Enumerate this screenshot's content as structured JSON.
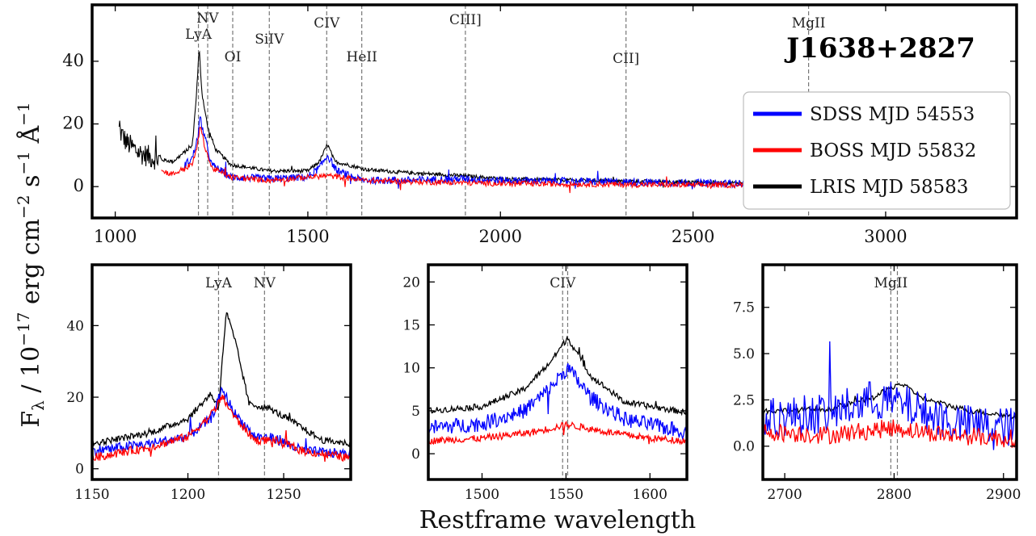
{
  "figure": {
    "object_name": "J1638+2827",
    "xlabel": "Restframe wavelength",
    "ylabel_parts": {
      "main": "F",
      "sub": "λ",
      "mid": " / 10",
      "exp1": "−17",
      "mid2": " erg cm",
      "exp2": "−2",
      "mid3": " s",
      "exp3": "−1",
      "mid4": " Å",
      "exp4": "−1"
    }
  },
  "legend": {
    "entries": [
      {
        "label": "SDSS MJD 54553",
        "color": "#0000ff"
      },
      {
        "label": "BOSS MJD 55832",
        "color": "#ff0000"
      },
      {
        "label": "LRIS MJD 58583",
        "color": "#000000"
      }
    ]
  },
  "chart_data": [
    {
      "type": "line",
      "panel": "full-spectrum",
      "xlim": [
        940,
        3340
      ],
      "ylim": [
        -10,
        58
      ],
      "xticks": [
        1000,
        1500,
        2000,
        2500,
        3000
      ],
      "yticks": [
        0,
        20,
        40
      ],
      "lines": [
        {
          "label": "LyA",
          "x": 1216
        },
        {
          "label": "NV",
          "x": 1240
        },
        {
          "label": "OI",
          "x": 1305
        },
        {
          "label": "SiIV",
          "x": 1400
        },
        {
          "label": "CIV",
          "x": 1549
        },
        {
          "label": "HeII",
          "x": 1640
        },
        {
          "label": "CIII]",
          "x": 1909
        },
        {
          "label": "CII]",
          "x": 2326
        },
        {
          "label": "MgII",
          "x": 2800
        }
      ],
      "series": [
        {
          "name": "SDSS MJD 54553",
          "x_range": [
            1180,
            2910
          ],
          "anchors": [
            [
              1180,
              7
            ],
            [
              1200,
              9
            ],
            [
              1215,
              16
            ],
            [
              1220,
              22
            ],
            [
              1230,
              17
            ],
            [
              1250,
              7
            ],
            [
              1300,
              3
            ],
            [
              1400,
              2.5
            ],
            [
              1500,
              3
            ],
            [
              1530,
              6
            ],
            [
              1551,
              10
            ],
            [
              1575,
              5
            ],
            [
              1640,
              2
            ],
            [
              1750,
              2
            ],
            [
              1900,
              2.5
            ],
            [
              2000,
              2
            ],
            [
              2300,
              1.5
            ],
            [
              2600,
              1
            ],
            [
              2910,
              1
            ]
          ]
        },
        {
          "name": "BOSS MJD 55832",
          "x_range": [
            1120,
            3260
          ],
          "anchors": [
            [
              1120,
              5
            ],
            [
              1150,
              4
            ],
            [
              1200,
              7
            ],
            [
              1215,
              14
            ],
            [
              1220,
              20
            ],
            [
              1230,
              14
            ],
            [
              1250,
              6
            ],
            [
              1300,
              3
            ],
            [
              1400,
              2
            ],
            [
              1550,
              3.5
            ],
            [
              1650,
              2
            ],
            [
              1800,
              1.5
            ],
            [
              2000,
              1
            ],
            [
              2500,
              0.5
            ],
            [
              3000,
              0.5
            ],
            [
              3260,
              0.3
            ]
          ]
        },
        {
          "name": "LRIS MJD 58583",
          "x_range": [
            1010,
            2790
          ],
          "anchors": [
            [
              1010,
              18
            ],
            [
              1030,
              14
            ],
            [
              1060,
              11
            ],
            [
              1100,
              9
            ],
            [
              1150,
              8
            ],
            [
              1200,
              13
            ],
            [
              1210,
              28
            ],
            [
              1218,
              44
            ],
            [
              1225,
              30
            ],
            [
              1240,
              19
            ],
            [
              1260,
              12
            ],
            [
              1300,
              7
            ],
            [
              1400,
              5
            ],
            [
              1500,
              5
            ],
            [
              1530,
              8
            ],
            [
              1551,
              13.5
            ],
            [
              1570,
              8
            ],
            [
              1650,
              5.5
            ],
            [
              1750,
              4.5
            ],
            [
              1900,
              3.5
            ],
            [
              2000,
              2.5
            ],
            [
              2300,
              1.8
            ],
            [
              2600,
              1.2
            ],
            [
              2790,
              1
            ]
          ]
        }
      ]
    },
    {
      "type": "line",
      "panel": "lya-zoom",
      "xlim": [
        1150,
        1285
      ],
      "ylim": [
        -3,
        57
      ],
      "xticks": [
        1150,
        1200,
        1250
      ],
      "yticks": [
        0,
        20,
        40
      ],
      "lines": [
        {
          "label": "LyA",
          "x": 1216
        },
        {
          "label": "NV",
          "x": 1240
        }
      ],
      "series": [
        {
          "name": "SDSS MJD 54553",
          "x_range": [
            1150,
            1285
          ],
          "anchors": [
            [
              1150,
              5
            ],
            [
              1180,
              7
            ],
            [
              1200,
              9
            ],
            [
              1212,
              14
            ],
            [
              1218,
              22
            ],
            [
              1225,
              15
            ],
            [
              1235,
              9
            ],
            [
              1245,
              8.5
            ],
            [
              1260,
              5
            ],
            [
              1285,
              4
            ]
          ]
        },
        {
          "name": "BOSS MJD 55832",
          "x_range": [
            1150,
            1285
          ],
          "anchors": [
            [
              1150,
              3
            ],
            [
              1180,
              6
            ],
            [
              1200,
              9
            ],
            [
              1212,
              15
            ],
            [
              1218,
              20
            ],
            [
              1225,
              14
            ],
            [
              1235,
              8
            ],
            [
              1245,
              8
            ],
            [
              1260,
              5
            ],
            [
              1285,
              3
            ]
          ]
        },
        {
          "name": "LRIS MJD 58583",
          "x_range": [
            1150,
            1285
          ],
          "anchors": [
            [
              1150,
              7
            ],
            [
              1180,
              10
            ],
            [
              1200,
              14
            ],
            [
              1212,
              21
            ],
            [
              1216,
              17
            ],
            [
              1220,
              44
            ],
            [
              1225,
              35
            ],
            [
              1232,
              18
            ],
            [
              1242,
              17
            ],
            [
              1255,
              13
            ],
            [
              1270,
              8
            ],
            [
              1285,
              7
            ]
          ]
        }
      ]
    },
    {
      "type": "line",
      "panel": "civ-zoom",
      "xlim": [
        1468,
        1622
      ],
      "ylim": [
        -3,
        22
      ],
      "xticks": [
        1500,
        1550,
        1600
      ],
      "yticks": [
        0,
        5,
        10,
        15,
        20
      ],
      "lines": [
        {
          "label": "CIV",
          "x": 1548
        },
        {
          "label": "",
          "x": 1551
        }
      ],
      "series": [
        {
          "name": "SDSS MJD 54553",
          "x_range": [
            1468,
            1622
          ],
          "anchors": [
            [
              1468,
              3
            ],
            [
              1500,
              3.5
            ],
            [
              1525,
              5
            ],
            [
              1540,
              7.5
            ],
            [
              1551,
              10
            ],
            [
              1565,
              6.5
            ],
            [
              1585,
              4
            ],
            [
              1622,
              2.5
            ]
          ]
        },
        {
          "name": "BOSS MJD 55832",
          "x_range": [
            1468,
            1622
          ],
          "anchors": [
            [
              1468,
              1.5
            ],
            [
              1500,
              1.8
            ],
            [
              1530,
              2.5
            ],
            [
              1551,
              3.4
            ],
            [
              1575,
              2.5
            ],
            [
              1600,
              1.8
            ],
            [
              1622,
              1.5
            ]
          ]
        },
        {
          "name": "LRIS MJD 58583",
          "x_range": [
            1468,
            1622
          ],
          "anchors": [
            [
              1468,
              5
            ],
            [
              1500,
              5.5
            ],
            [
              1525,
              7.5
            ],
            [
              1540,
              10.5
            ],
            [
              1551,
              13.5
            ],
            [
              1565,
              9
            ],
            [
              1585,
              6
            ],
            [
              1622,
              4.8
            ]
          ]
        }
      ]
    },
    {
      "type": "line",
      "panel": "mgii-zoom",
      "xlim": [
        2680,
        2912
      ],
      "ylim": [
        -1.8,
        9.8
      ],
      "xticks": [
        2700,
        2800,
        2900
      ],
      "yticks": [
        0.0,
        2.5,
        5.0,
        7.5
      ],
      "lines": [
        {
          "label": "MgII",
          "x": 2797
        },
        {
          "label": "",
          "x": 2803
        }
      ],
      "series": [
        {
          "name": "SDSS MJD 54553",
          "x_range": [
            2680,
            2912
          ],
          "anchors": [
            [
              2680,
              1.5
            ],
            [
              2740,
              1.8
            ],
            [
              2780,
              2.5
            ],
            [
              2800,
              2.4
            ],
            [
              2820,
              2
            ],
            [
              2860,
              1.2
            ],
            [
              2912,
              1
            ]
          ]
        },
        {
          "name": "BOSS MJD 55832",
          "x_range": [
            2680,
            2912
          ],
          "anchors": [
            [
              2680,
              0.8
            ],
            [
              2740,
              0.6
            ],
            [
              2800,
              1
            ],
            [
              2850,
              0.6
            ],
            [
              2912,
              0.4
            ]
          ]
        },
        {
          "name": "LRIS MJD 58583",
          "x_range": [
            2680,
            2912
          ],
          "anchors": [
            [
              2680,
              1.9
            ],
            [
              2740,
              2
            ],
            [
              2780,
              2.6
            ],
            [
              2805,
              3.4
            ],
            [
              2830,
              2.5
            ],
            [
              2870,
              1.9
            ],
            [
              2912,
              1.6
            ]
          ]
        }
      ]
    }
  ]
}
